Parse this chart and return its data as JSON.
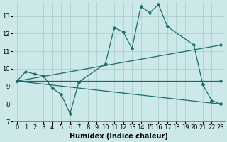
{
  "xlabel": "Humidex (Indice chaleur)",
  "bg_color": "#cce8e8",
  "line_color": "#1a6b6b",
  "grid_color": "#aacccc",
  "xlim": [
    -0.5,
    23.5
  ],
  "ylim": [
    7,
    13.8
  ],
  "yticks": [
    7,
    8,
    9,
    10,
    11,
    12,
    13
  ],
  "xticks": [
    0,
    1,
    2,
    3,
    4,
    5,
    6,
    7,
    8,
    9,
    10,
    11,
    12,
    13,
    14,
    15,
    16,
    17,
    18,
    19,
    20,
    21,
    22,
    23
  ],
  "line1_x": [
    0,
    1,
    2,
    3,
    4,
    5,
    6,
    7,
    10,
    11,
    12,
    13,
    14,
    15,
    16,
    17,
    20,
    21,
    22,
    23
  ],
  "line1_y": [
    9.3,
    9.85,
    9.7,
    9.6,
    8.9,
    8.55,
    7.45,
    9.25,
    10.3,
    12.35,
    12.1,
    11.15,
    13.55,
    13.2,
    13.65,
    12.4,
    11.35,
    9.1,
    8.2,
    8.0
  ],
  "line2_x": [
    0,
    23
  ],
  "line2_y": [
    9.3,
    11.35
  ],
  "line3_x": [
    0,
    23
  ],
  "line3_y": [
    9.3,
    9.3
  ],
  "line4_x": [
    0,
    23
  ],
  "line4_y": [
    9.3,
    8.0
  ],
  "tick_fontsize": 6,
  "label_fontsize": 7
}
